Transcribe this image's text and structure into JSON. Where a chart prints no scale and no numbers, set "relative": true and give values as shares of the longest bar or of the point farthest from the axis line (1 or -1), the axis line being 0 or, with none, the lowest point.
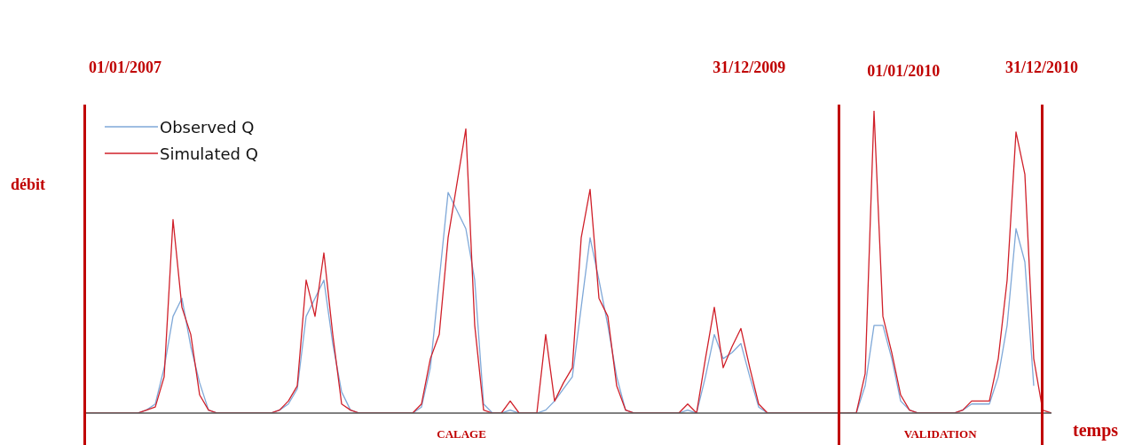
{
  "chart_data": {
    "type": "line",
    "relative": true,
    "ylabel": "débit",
    "xlabel": "temps",
    "legend": "top left",
    "categories": [
      null,
      null,
      null,
      null,
      null,
      null,
      null,
      null,
      null,
      null,
      null,
      null,
      null,
      null,
      null,
      null,
      null,
      null,
      null,
      null,
      null,
      null,
      null,
      null,
      null,
      null,
      null,
      null,
      null,
      null,
      null,
      null,
      null,
      null,
      null,
      null,
      null,
      null,
      null,
      null,
      null,
      null,
      null,
      null,
      null,
      null,
      null,
      null,
      null,
      null,
      null,
      null,
      null,
      null,
      null,
      null,
      null,
      null,
      null,
      null,
      null,
      null,
      null,
      null,
      null,
      null,
      null,
      null,
      null,
      null,
      null,
      null,
      null,
      null,
      null,
      null,
      null,
      null,
      null,
      null,
      null,
      null,
      null,
      null,
      null,
      null,
      null,
      null,
      null,
      null,
      null,
      null,
      null,
      null,
      null,
      null,
      null,
      null,
      null,
      null,
      null,
      null,
      null,
      null,
      null,
      null,
      null,
      null,
      null,
      null
    ],
    "series": [
      {
        "name": "Observed Q",
        "color": "#7fa8d8",
        "values": [
          null,
          null,
          null,
          null,
          null,
          null,
          0,
          0.01,
          0.03,
          0.15,
          0.32,
          0.38,
          0.22,
          0.1,
          0.01,
          0,
          0,
          0,
          0,
          0,
          0,
          0,
          0.01,
          0.03,
          0.08,
          0.32,
          0.38,
          0.44,
          0.23,
          0.07,
          0.01,
          0,
          0,
          0,
          0,
          0,
          0,
          0,
          0.02,
          0.15,
          0.44,
          0.73,
          0.67,
          0.61,
          0.44,
          0.03,
          0,
          0,
          0.01,
          0,
          0,
          0,
          0.01,
          0.04,
          0.08,
          0.12,
          0.35,
          0.58,
          0.44,
          0.29,
          0.12,
          0.01,
          0,
          0,
          0,
          0,
          0,
          0,
          0.01,
          0,
          0.12,
          0.26,
          0.18,
          0.2,
          0.23,
          0.12,
          0.02,
          0,
          0,
          0,
          0,
          0,
          0,
          0,
          0,
          null,
          0,
          0,
          0.09,
          0.29,
          0.29,
          0.18,
          0.04,
          0.01,
          0,
          0,
          0,
          0,
          0,
          0.01,
          0.03,
          0.03,
          0.03,
          0.12,
          0.29,
          0.61,
          0.5,
          0.09,
          null,
          null
        ]
      },
      {
        "name": "Simulated Q",
        "color": "#d0202a",
        "values": [
          0,
          0,
          0,
          0,
          0,
          0,
          0,
          0.01,
          0.02,
          0.12,
          0.64,
          0.35,
          0.26,
          0.06,
          0.01,
          0,
          0,
          0,
          0,
          0,
          0,
          0,
          0.01,
          0.04,
          0.09,
          0.44,
          0.32,
          0.53,
          0.26,
          0.03,
          0.01,
          0,
          0,
          0,
          0,
          0,
          0,
          0,
          0.03,
          0.18,
          0.26,
          0.58,
          0.76,
          0.94,
          0.29,
          0.01,
          0,
          0,
          0.04,
          0,
          0,
          0,
          0.26,
          0.04,
          0.1,
          0.15,
          0.58,
          0.74,
          0.38,
          0.32,
          0.09,
          0.01,
          0,
          0,
          0,
          0,
          0,
          0,
          0.03,
          0,
          0.18,
          0.35,
          0.15,
          0.22,
          0.28,
          0.15,
          0.03,
          0,
          0,
          0,
          0,
          0,
          0,
          0,
          0,
          0,
          0,
          0,
          0.13,
          1,
          0.32,
          0.2,
          0.06,
          0.01,
          0,
          0,
          0,
          0,
          0,
          0.01,
          0.04,
          0.04,
          0.04,
          0.18,
          0.44,
          0.93,
          0.79,
          0.18,
          0.01,
          0
        ]
      }
    ],
    "annotations": [
      "01/01/2007",
      "31/12/2009",
      "01/01/2010",
      "31/12/2010",
      "CALAGE",
      "VALIDATION"
    ]
  }
}
